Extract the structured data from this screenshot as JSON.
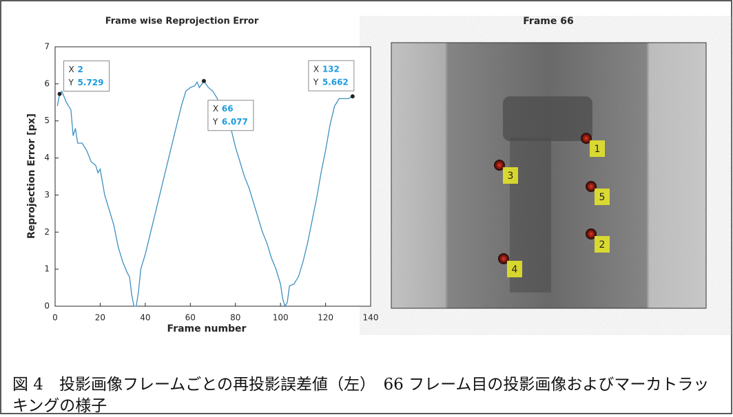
{
  "chart_data": {
    "type": "line",
    "title": "Frame wise Reprojection Error",
    "xlabel": "Frame number",
    "ylabel": "Reprojection Error [px]",
    "color": "#3d8fc0",
    "x": [
      1,
      2,
      3,
      5,
      7,
      8,
      9,
      10,
      12,
      14,
      16,
      18,
      19,
      20,
      22,
      24,
      26,
      28,
      30,
      32,
      33,
      34,
      35,
      36,
      37,
      38,
      40,
      42,
      44,
      46,
      48,
      50,
      52,
      54,
      56,
      58,
      60,
      62,
      63,
      64,
      66,
      68,
      70,
      72,
      74,
      76,
      78,
      80,
      82,
      84,
      86,
      88,
      90,
      92,
      94,
      96,
      98,
      100,
      101,
      102,
      103,
      104,
      106,
      108,
      110,
      112,
      114,
      116,
      118,
      120,
      122,
      124,
      126,
      128,
      130,
      132
    ],
    "values": [
      5.4,
      5.729,
      5.8,
      5.5,
      5.3,
      4.6,
      4.8,
      4.4,
      4.4,
      4.2,
      3.9,
      3.8,
      3.6,
      3.7,
      3.0,
      2.6,
      2.2,
      1.6,
      1.2,
      0.9,
      0.8,
      0.3,
      0,
      0,
      0.4,
      1.0,
      1.4,
      1.9,
      2.4,
      2.9,
      3.4,
      3.9,
      4.4,
      4.9,
      5.4,
      5.8,
      5.9,
      5.95,
      6.05,
      5.9,
      6.077,
      5.9,
      5.8,
      5.6,
      5.2,
      5.0,
      4.8,
      4.3,
      3.9,
      3.5,
      3.2,
      2.8,
      2.4,
      2.0,
      1.7,
      1.3,
      1.0,
      0.6,
      0.2,
      0,
      0.1,
      0.55,
      0.6,
      0.8,
      1.2,
      1.7,
      2.3,
      2.9,
      3.6,
      4.2,
      4.9,
      5.4,
      5.6,
      5.6,
      5.6,
      5.662
    ],
    "xlim": [
      0,
      140
    ],
    "xticks": [
      0,
      20,
      40,
      60,
      80,
      100,
      120,
      140
    ],
    "ylim": [
      0,
      7
    ],
    "yticks": [
      0,
      1,
      2,
      3,
      4,
      5,
      6,
      7
    ],
    "datatips": [
      {
        "x_label": "X",
        "x": 2,
        "y_label": "Y",
        "y": 5.729
      },
      {
        "x_label": "X",
        "x": 66,
        "y_label": "Y",
        "y": 6.077
      },
      {
        "x_label": "X",
        "x": 132,
        "y_label": "Y",
        "y": 5.662
      }
    ]
  },
  "image": {
    "title": "Frame 66",
    "markers": [
      "1",
      "2",
      "3",
      "4",
      "5"
    ]
  },
  "caption": "図 4　投影画像フレームごとの再投影誤差値（左）　66 フレーム目の投影画像およびマーカトラッキングの様子"
}
